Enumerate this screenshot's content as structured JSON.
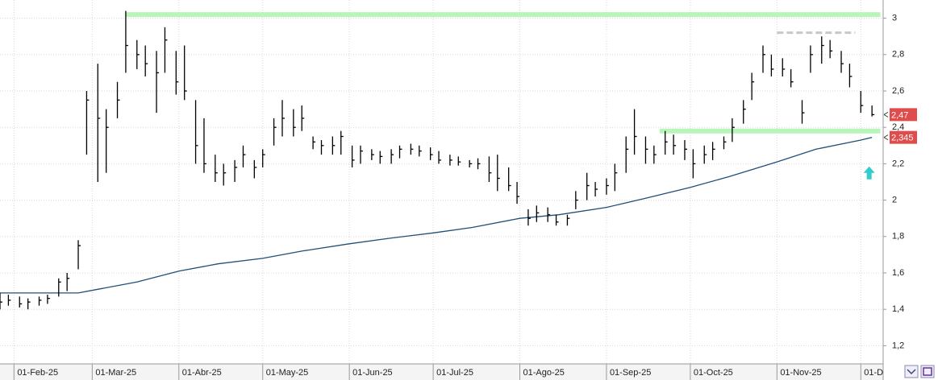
{
  "chart_data": {
    "type": "ohlc",
    "xlim": [
      "2025-01-27",
      "2025-12-09"
    ],
    "ylim": [
      1.1,
      3.1
    ],
    "yticks": [
      {
        "value": 1.2,
        "label": "1,2"
      },
      {
        "value": 1.4,
        "label": "1,4"
      },
      {
        "value": 1.6,
        "label": "1,6"
      },
      {
        "value": 1.8,
        "label": "1,8"
      },
      2,
      {
        "value": 2.2,
        "label": "2,2"
      },
      {
        "value": 2.4,
        "label": "2,4"
      },
      {
        "value": 2.6,
        "label": "2,6"
      },
      {
        "value": 2.8,
        "label": "2,8"
      },
      3
    ],
    "xticks": [
      {
        "value": "2025-02-01",
        "label": "01-Feb-25"
      },
      {
        "value": "2025-03-01",
        "label": "01-Mar-25"
      },
      {
        "value": "2025-04-01",
        "label": "01-Abr-25"
      },
      {
        "value": "2025-05-01",
        "label": "01-May-25"
      },
      {
        "value": "2025-06-01",
        "label": "01-Jun-25"
      },
      {
        "value": "2025-07-01",
        "label": "01-Jul-25"
      },
      {
        "value": "2025-08-01",
        "label": "01-Ago-25"
      },
      {
        "value": "2025-09-01",
        "label": "01-Sep-25"
      },
      {
        "value": "2025-10-01",
        "label": "01-Oct-25"
      },
      {
        "value": "2025-11-01",
        "label": "01-Nov-25"
      },
      {
        "value": "2025-12-01",
        "label": "01-D"
      }
    ],
    "grid": true,
    "color": "#000000",
    "x": [
      "2025-01-27",
      "2025-01-30",
      "2025-02-03",
      "2025-02-06",
      "2025-02-10",
      "2025-02-13",
      "2025-02-17",
      "2025-02-20",
      "2025-02-24",
      "2025-02-27",
      "2025-03-03",
      "2025-03-06",
      "2025-03-10",
      "2025-03-13",
      "2025-03-17",
      "2025-03-20",
      "2025-03-24",
      "2025-03-27",
      "2025-03-31",
      "2025-04-03",
      "2025-04-07",
      "2025-04-10",
      "2025-04-14",
      "2025-04-17",
      "2025-04-21",
      "2025-04-24",
      "2025-04-28",
      "2025-05-01",
      "2025-05-05",
      "2025-05-08",
      "2025-05-12",
      "2025-05-15",
      "2025-05-19",
      "2025-05-22",
      "2025-05-26",
      "2025-05-29",
      "2025-06-02",
      "2025-06-05",
      "2025-06-09",
      "2025-06-12",
      "2025-06-16",
      "2025-06-19",
      "2025-06-23",
      "2025-06-26",
      "2025-06-30",
      "2025-07-03",
      "2025-07-07",
      "2025-07-10",
      "2025-07-14",
      "2025-07-17",
      "2025-07-21",
      "2025-07-24",
      "2025-07-28",
      "2025-07-31",
      "2025-08-04",
      "2025-08-07",
      "2025-08-11",
      "2025-08-14",
      "2025-08-18",
      "2025-08-21",
      "2025-08-25",
      "2025-08-28",
      "2025-09-01",
      "2025-09-04",
      "2025-09-08",
      "2025-09-11",
      "2025-09-15",
      "2025-09-18",
      "2025-09-22",
      "2025-09-25",
      "2025-09-29",
      "2025-10-02",
      "2025-10-06",
      "2025-10-09",
      "2025-10-13",
      "2025-10-16",
      "2025-10-20",
      "2025-10-23",
      "2025-10-27",
      "2025-10-30",
      "2025-11-03",
      "2025-11-06",
      "2025-11-10",
      "2025-11-13",
      "2025-11-17",
      "2025-11-20",
      "2025-11-24",
      "2025-11-27",
      "2025-12-01",
      "2025-12-05"
    ],
    "high": [
      1.49,
      1.48,
      1.47,
      1.46,
      1.47,
      1.48,
      1.57,
      1.6,
      1.78,
      2.6,
      2.75,
      2.5,
      2.65,
      3.04,
      2.88,
      2.85,
      2.82,
      2.95,
      2.82,
      2.85,
      2.55,
      2.45,
      2.25,
      2.2,
      2.22,
      2.3,
      2.22,
      2.28,
      2.45,
      2.55,
      2.5,
      2.52,
      2.35,
      2.33,
      2.35,
      2.38,
      2.3,
      2.3,
      2.28,
      2.27,
      2.28,
      2.3,
      2.31,
      2.3,
      2.29,
      2.27,
      2.25,
      2.24,
      2.22,
      2.23,
      2.24,
      2.25,
      2.18,
      2.1,
      1.95,
      1.97,
      1.96,
      1.92,
      1.92,
      2.05,
      2.15,
      2.1,
      2.12,
      2.2,
      2.35,
      2.5,
      2.35,
      2.3,
      2.38,
      2.36,
      2.33,
      2.28,
      2.3,
      2.32,
      2.35,
      2.45,
      2.55,
      2.7,
      2.85,
      2.8,
      2.78,
      2.72,
      2.55,
      2.85,
      2.9,
      2.88,
      2.82,
      2.75,
      2.6,
      2.52
    ],
    "low": [
      1.4,
      1.42,
      1.41,
      1.4,
      1.42,
      1.43,
      1.47,
      1.5,
      1.62,
      2.25,
      2.1,
      2.15,
      2.45,
      2.7,
      2.72,
      2.68,
      2.48,
      2.7,
      2.58,
      2.55,
      2.2,
      2.15,
      2.1,
      2.08,
      2.1,
      2.18,
      2.12,
      2.18,
      2.3,
      2.35,
      2.35,
      2.38,
      2.28,
      2.25,
      2.25,
      2.25,
      2.18,
      2.2,
      2.22,
      2.2,
      2.2,
      2.23,
      2.25,
      2.24,
      2.22,
      2.2,
      2.19,
      2.19,
      2.18,
      2.17,
      2.1,
      2.05,
      2.05,
      1.98,
      1.86,
      1.88,
      1.88,
      1.86,
      1.86,
      1.95,
      2,
      2.02,
      2.03,
      2.05,
      2.15,
      2.25,
      2.2,
      2.2,
      2.25,
      2.25,
      2.22,
      2.12,
      2.2,
      2.22,
      2.28,
      2.32,
      2.42,
      2.55,
      2.7,
      2.68,
      2.68,
      2.62,
      2.42,
      2.7,
      2.75,
      2.78,
      2.7,
      2.62,
      2.48,
      2.46
    ],
    "close": [
      1.44,
      1.45,
      1.43,
      1.44,
      1.45,
      1.46,
      1.55,
      1.57,
      1.75,
      2.55,
      2.45,
      2.4,
      2.55,
      2.85,
      2.8,
      2.75,
      2.7,
      2.88,
      2.65,
      2.6,
      2.3,
      2.2,
      2.15,
      2.15,
      2.18,
      2.25,
      2.18,
      2.25,
      2.4,
      2.45,
      2.4,
      2.45,
      2.32,
      2.3,
      2.3,
      2.35,
      2.22,
      2.27,
      2.25,
      2.24,
      2.25,
      2.28,
      2.28,
      2.27,
      2.25,
      2.22,
      2.22,
      2.21,
      2.2,
      2.2,
      2.15,
      2.12,
      2.08,
      2.02,
      1.9,
      1.93,
      1.92,
      1.88,
      1.9,
      2,
      2.08,
      2.06,
      2.08,
      2.15,
      2.28,
      2.35,
      2.28,
      2.25,
      2.32,
      2.3,
      2.28,
      2.2,
      2.25,
      2.28,
      2.32,
      2.4,
      2.5,
      2.65,
      2.8,
      2.72,
      2.72,
      2.65,
      2.48,
      2.8,
      2.85,
      2.82,
      2.75,
      2.68,
      2.52,
      2.47
    ],
    "lines": [
      {
        "color": "#1f4e79",
        "x": [
          "2025-01-27",
          "2025-02-24",
          "2025-03-03",
          "2025-03-17",
          "2025-04-01",
          "2025-04-15",
          "2025-05-01",
          "2025-05-15",
          "2025-06-01",
          "2025-06-15",
          "2025-07-01",
          "2025-07-15",
          "2025-08-01",
          "2025-08-15",
          "2025-09-01",
          "2025-09-15",
          "2025-10-01",
          "2025-10-15",
          "2025-11-01",
          "2025-11-15",
          "2025-12-01",
          "2025-12-05"
        ],
        "values": [
          1.49,
          1.49,
          1.51,
          1.55,
          1.61,
          1.65,
          1.68,
          1.72,
          1.76,
          1.79,
          1.82,
          1.85,
          1.9,
          1.92,
          1.96,
          2.01,
          2.07,
          2.13,
          2.21,
          2.28,
          2.33,
          2.345
        ]
      }
    ],
    "hlines": [
      {
        "value": 3.02,
        "from": "2025-03-13",
        "to": "2025-12-08",
        "color": "#b8f5b8",
        "dash": false
      },
      {
        "value": 2.38,
        "from": "2025-09-20",
        "to": "2025-12-08",
        "color": "#b8f5b8",
        "dash": false
      },
      {
        "value": 2.92,
        "from": "2025-11-01",
        "to": "2025-11-29",
        "color": "#c8c8c8",
        "dash": true
      }
    ],
    "price_tags": [
      {
        "value": 2.47,
        "label": "2,47",
        "color": "#e04c4c"
      },
      {
        "value": 2.345,
        "label": "2,345",
        "color": "#e04c4c"
      }
    ],
    "arrows": [
      {
        "x": "2025-12-04",
        "y": 2.15,
        "color": "#33cccc"
      }
    ]
  }
}
